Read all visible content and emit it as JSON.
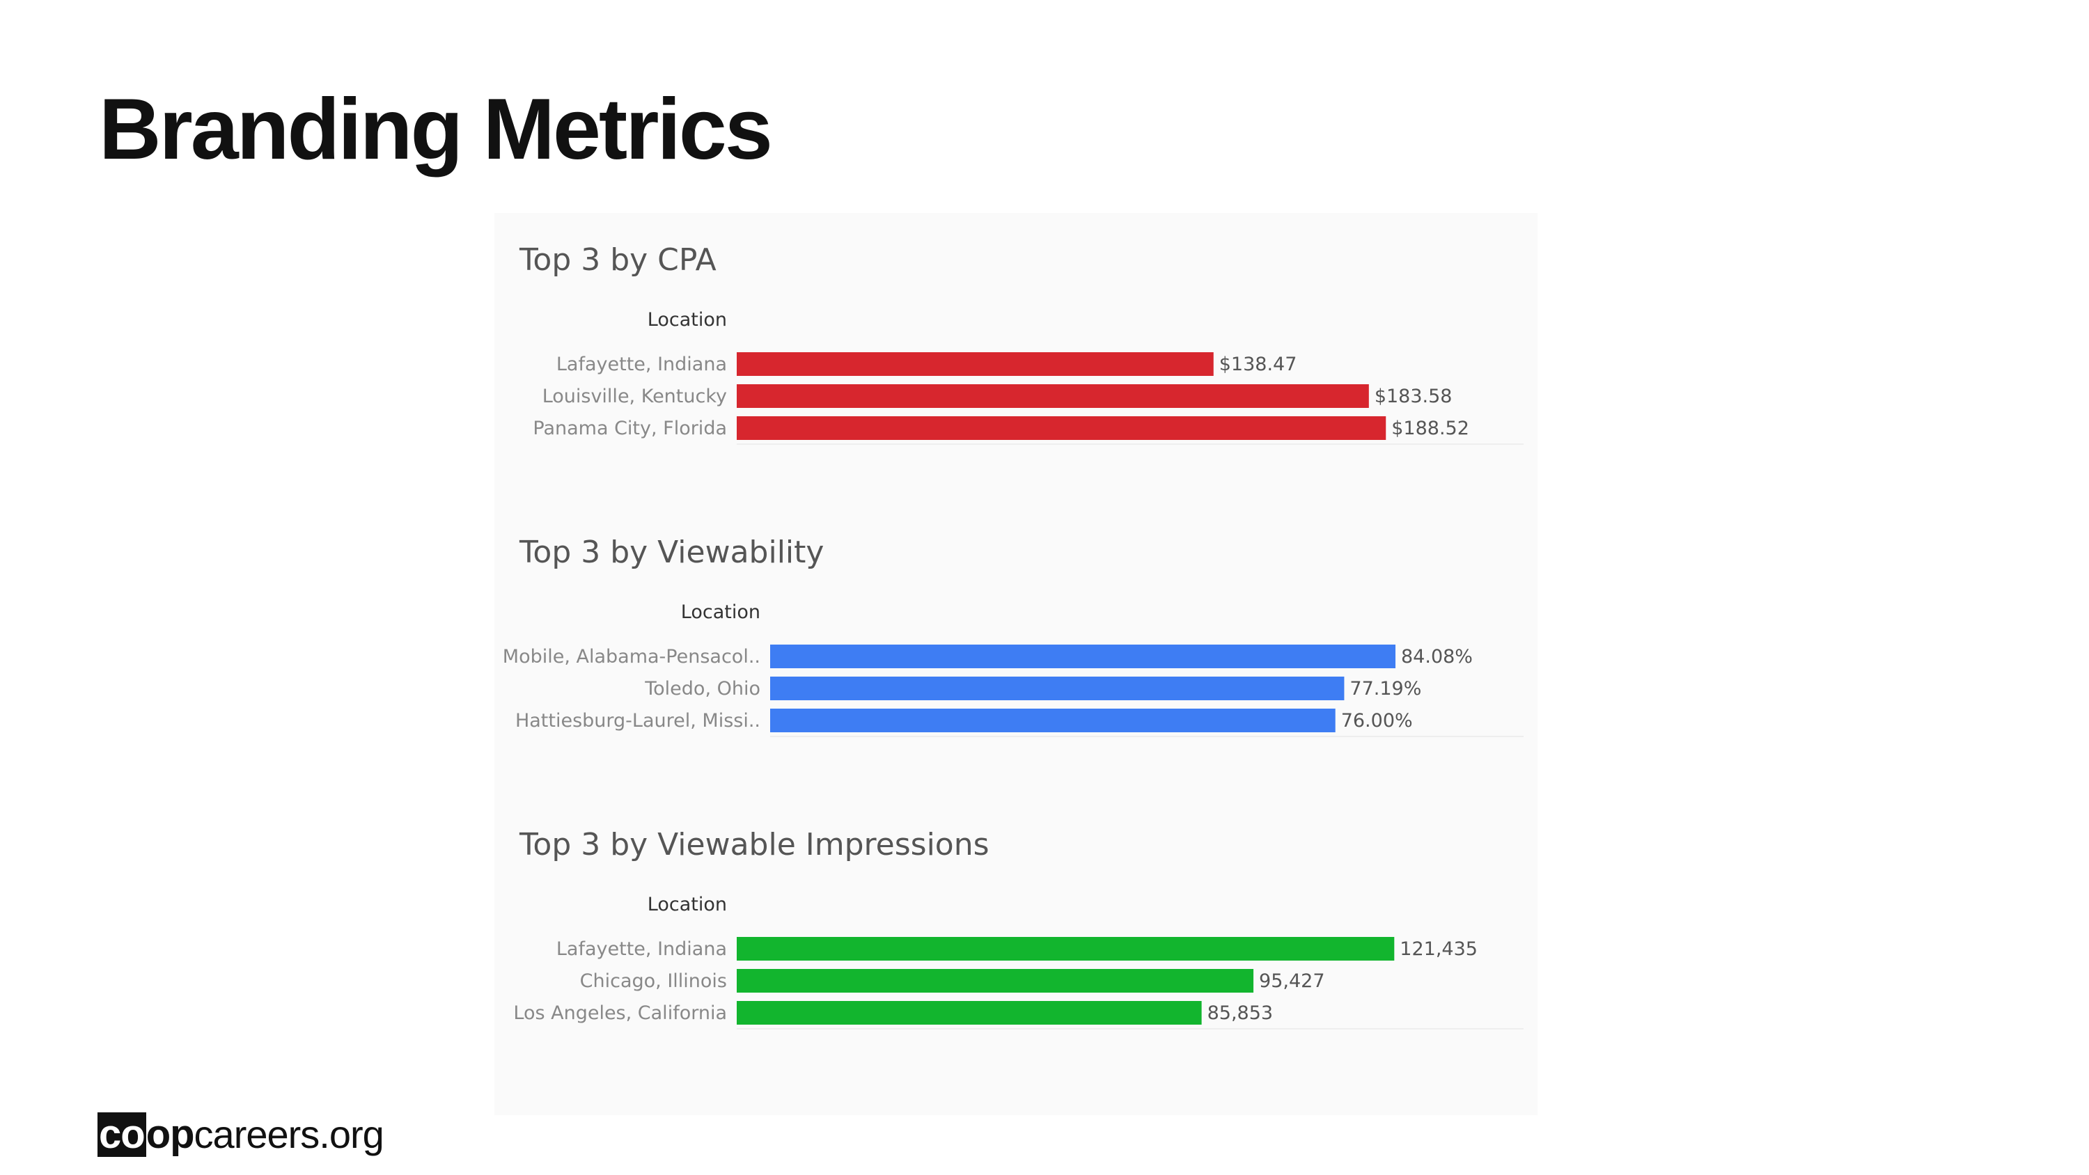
{
  "page": {
    "title": "Branding Metrics"
  },
  "logo": {
    "boxed": "co",
    "bold": "op",
    "rest": "careers.org"
  },
  "chart_data": [
    {
      "type": "bar",
      "orientation": "horizontal",
      "title": "Top 3 by CPA",
      "category_header": "Location",
      "categories": [
        "Lafayette, Indiana",
        "Louisville, Kentucky",
        "Panama City, Florida"
      ],
      "values": [
        138.47,
        183.58,
        188.52
      ],
      "value_labels": [
        "$138.47",
        "$183.58",
        "$188.52"
      ],
      "color": "#d7262e",
      "grid": false
    },
    {
      "type": "bar",
      "orientation": "horizontal",
      "title": "Top 3 by Viewability",
      "category_header": "Location",
      "categories": [
        "Mobile, Alabama-Pensacol..",
        "Toledo, Ohio",
        "Hattiesburg-Laurel, Missi.."
      ],
      "values": [
        84.08,
        77.19,
        76.0
      ],
      "value_labels": [
        "84.08%",
        "77.19%",
        "76.00%"
      ],
      "color": "#3e7df3",
      "grid": false
    },
    {
      "type": "bar",
      "orientation": "horizontal",
      "title": "Top 3 by Viewable Impressions",
      "category_header": "Location",
      "categories": [
        "Lafayette, Indiana",
        "Chicago, Illinois",
        "Los Angeles, California"
      ],
      "values": [
        121435,
        95427,
        85853
      ],
      "value_labels": [
        "121,435",
        "95,427",
        "85,853"
      ],
      "color": "#12b52e",
      "grid": false
    }
  ]
}
